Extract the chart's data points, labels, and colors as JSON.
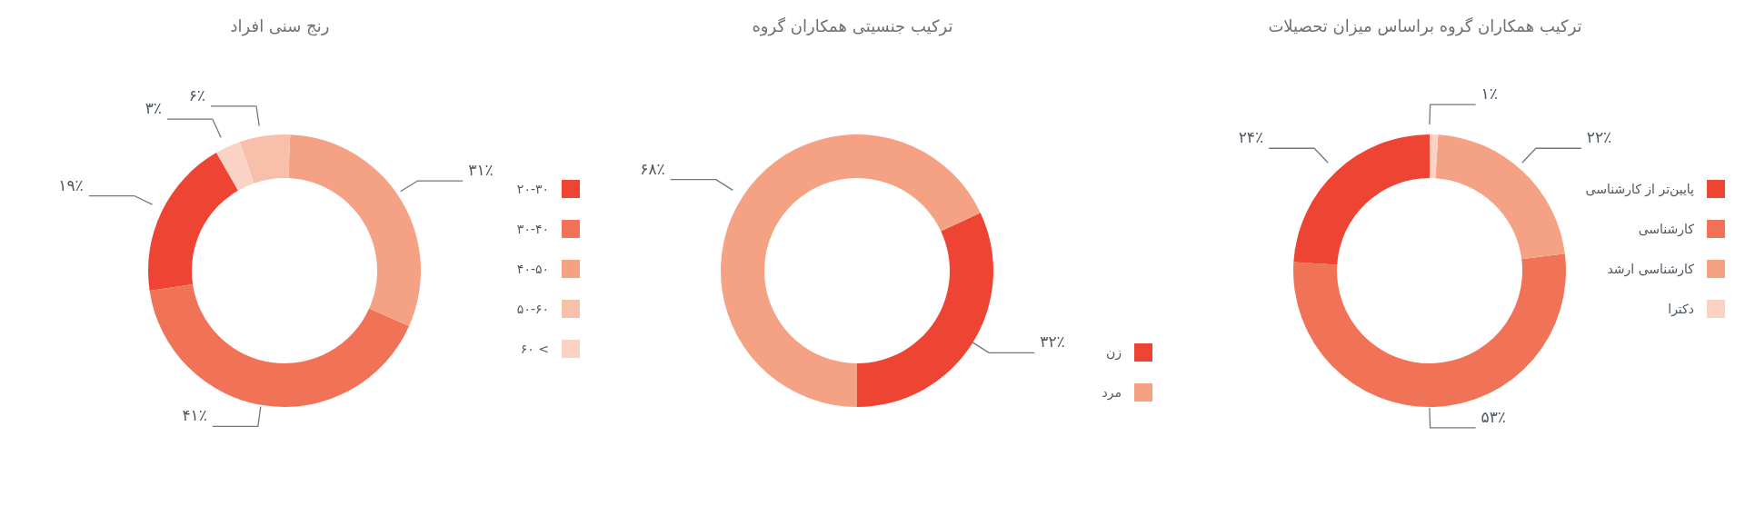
{
  "chart_data": [
    {
      "type": "donut",
      "title": "رنج سنی افراد",
      "categories": [
        "۲۰-۳۰",
        "۳۰-۴۰",
        "۴۰-۵۰",
        "۵۰-۶۰",
        "> ۶۰"
      ],
      "values": [
        19,
        41,
        31,
        6,
        3
      ],
      "value_labels": [
        "۱۹٪",
        "۴۱٪",
        "۳۱٪",
        "۶٪",
        "۳٪"
      ],
      "colors": [
        "#ee4433",
        "#f07357",
        "#f4a283",
        "#f8c0aa",
        "#fad3c4"
      ],
      "legend": "right"
    },
    {
      "type": "donut",
      "title": "ترکیب جنسیتی همکاران گروه",
      "categories": [
        "زن",
        "مرد"
      ],
      "values": [
        32,
        68
      ],
      "value_labels": [
        "۳۲٪",
        "۶۸٪"
      ],
      "colors": [
        "#ee4433",
        "#f4a283"
      ],
      "legend": "bottom right"
    },
    {
      "type": "donut",
      "title": "ترکیب همکاران گروه براساس میزان تحصیلات",
      "categories": [
        "پایین‌تر از کارشناسی",
        "کارشناسی",
        "کارشناسی ارشد",
        "دکترا"
      ],
      "values": [
        24,
        53,
        22,
        1
      ],
      "value_labels": [
        "۲۴٪",
        "۵۳٪",
        "۲۲٪",
        "۱٪"
      ],
      "colors": [
        "#ee4433",
        "#f07357",
        "#f4a283",
        "#fad3c4"
      ],
      "legend": "right"
    }
  ]
}
